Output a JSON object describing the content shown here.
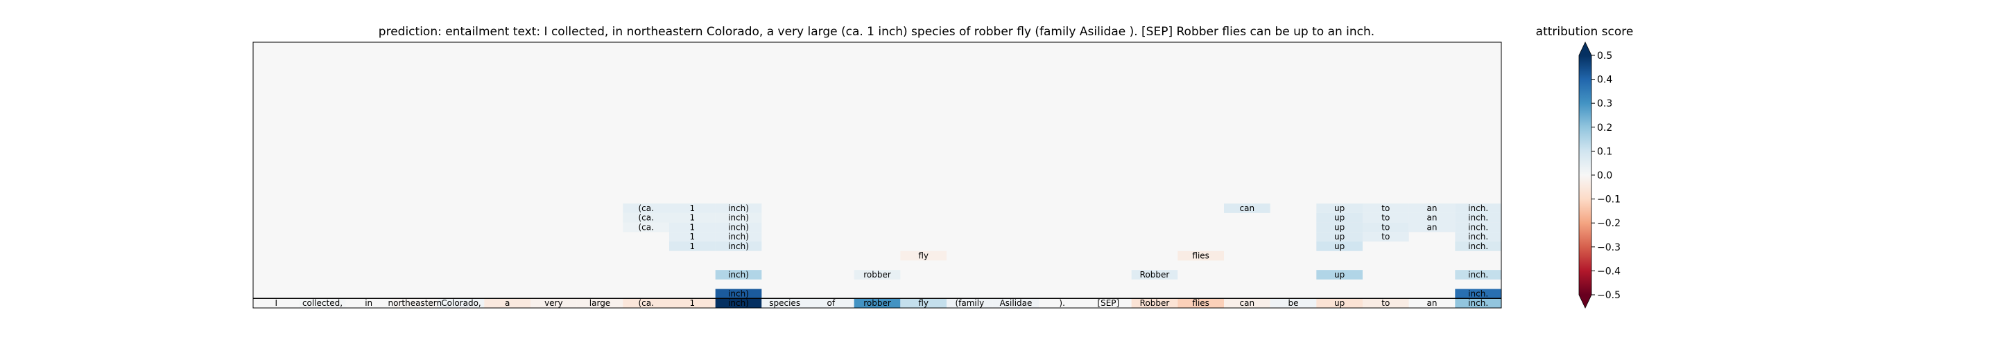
{
  "chart_data": {
    "type": "heatmap",
    "title": "prediction:  entailment     text:  I collected, in northeastern Colorado, a very large (ca. 1 inch) species of robber fly (family Asilidae ). [SEP] Robber flies can be up to an inch.",
    "colorbar_label": "attribution score",
    "colorbar_range": [
      -0.5,
      0.5
    ],
    "colorbar_ticks": [
      0.5,
      0.4,
      0.3,
      0.2,
      0.1,
      0.0,
      -0.1,
      -0.2,
      -0.3,
      -0.4,
      -0.5
    ],
    "colorbar_tick_labels": [
      "0.5",
      "0.4",
      "0.3",
      "0.2",
      "0.1",
      "0.0",
      "−0.1",
      "−0.2",
      "−0.3",
      "−0.4",
      "−0.5"
    ],
    "n_rows": 28,
    "tokens": [
      "I",
      "collected,",
      "in",
      "northeastern",
      "Colorado,",
      "a",
      "very",
      "large",
      "(ca.",
      "1",
      "inch)",
      "species",
      "of",
      "robber",
      "fly",
      "(family",
      "Asilidae",
      ").",
      "[SEP]",
      "Robber",
      "flies",
      "can",
      "be",
      "up",
      "to",
      "an",
      "inch."
    ],
    "rows": [
      {
        "row": 0,
        "cells": [
          [
            0,
            0.0
          ],
          [
            1,
            0.01
          ],
          [
            2,
            0.0
          ],
          [
            3,
            -0.01
          ],
          [
            4,
            0.02
          ],
          [
            5,
            -0.05
          ],
          [
            6,
            -0.02
          ],
          [
            7,
            -0.02
          ],
          [
            8,
            -0.06
          ],
          [
            9,
            -0.06
          ],
          [
            10,
            0.5
          ],
          [
            11,
            0.02
          ],
          [
            12,
            0.02
          ],
          [
            13,
            0.3
          ],
          [
            14,
            0.12
          ],
          [
            15,
            0.02
          ],
          [
            16,
            0.02
          ],
          [
            17,
            0.0
          ],
          [
            18,
            0.0
          ],
          [
            19,
            -0.07
          ],
          [
            20,
            -0.12
          ],
          [
            21,
            -0.03
          ],
          [
            22,
            0.02
          ],
          [
            23,
            -0.07
          ],
          [
            24,
            -0.04
          ],
          [
            25,
            0.0
          ],
          [
            26,
            0.2
          ]
        ]
      },
      {
        "row": 1,
        "cells": [
          [
            10,
            0.42
          ],
          [
            26,
            0.38
          ]
        ]
      },
      {
        "row": 3,
        "cells": [
          [
            10,
            0.15
          ],
          [
            13,
            0.04
          ],
          [
            19,
            0.06
          ],
          [
            23,
            0.15
          ],
          [
            26,
            0.12
          ]
        ]
      },
      {
        "row": 5,
        "cells": [
          [
            14,
            -0.03
          ],
          [
            20,
            -0.04
          ]
        ]
      },
      {
        "row": 6,
        "cells": [
          [
            9,
            0.07
          ],
          [
            10,
            0.07
          ],
          [
            23,
            0.1
          ],
          [
            26,
            0.08
          ]
        ]
      },
      {
        "row": 7,
        "cells": [
          [
            9,
            0.05
          ],
          [
            10,
            0.05
          ],
          [
            23,
            0.07
          ],
          [
            24,
            0.05
          ],
          [
            26,
            0.06
          ]
        ]
      },
      {
        "row": 8,
        "cells": [
          [
            8,
            0.03
          ],
          [
            9,
            0.05
          ],
          [
            10,
            0.05
          ],
          [
            23,
            0.07
          ],
          [
            24,
            0.06
          ],
          [
            25,
            0.05
          ],
          [
            26,
            0.06
          ]
        ]
      },
      {
        "row": 9,
        "cells": [
          [
            8,
            0.04
          ],
          [
            9,
            0.04
          ],
          [
            10,
            0.04
          ],
          [
            23,
            0.07
          ],
          [
            24,
            0.05
          ],
          [
            25,
            0.05
          ],
          [
            26,
            0.06
          ]
        ]
      },
      {
        "row": 10,
        "cells": [
          [
            8,
            0.05
          ],
          [
            9,
            0.05
          ],
          [
            10,
            0.05
          ],
          [
            21,
            0.07
          ],
          [
            23,
            0.06
          ],
          [
            24,
            0.05
          ],
          [
            25,
            0.05
          ],
          [
            26,
            0.06
          ]
        ]
      }
    ]
  }
}
